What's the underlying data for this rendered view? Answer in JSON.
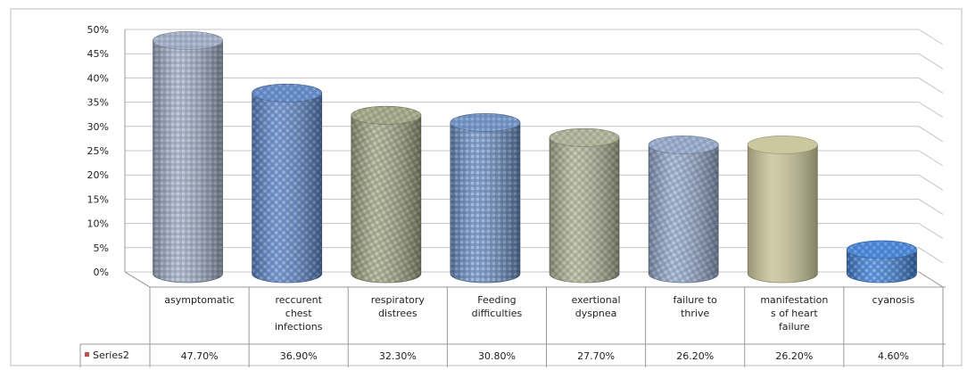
{
  "chart_data": {
    "type": "bar",
    "categories": [
      "asymptomatic",
      "reccurent chest infections",
      "respiratory distrees",
      "Feeding difficulties",
      "exertional dyspnea",
      "failure to thrive",
      "manifestations of heart failure",
      "cyanosis"
    ],
    "category_lines": [
      [
        "asymptomatic"
      ],
      [
        "reccurent",
        "chest",
        "infections"
      ],
      [
        "respiratory",
        "distrees"
      ],
      [
        "Feeding",
        "difficulties"
      ],
      [
        "exertional",
        "dyspnea"
      ],
      [
        "failure to",
        "thrive"
      ],
      [
        "manifestation",
        "s of heart",
        "failure"
      ],
      [
        "cyanosis"
      ]
    ],
    "series": [
      {
        "name": "Series2",
        "values": [
          47.7,
          36.9,
          32.3,
          30.8,
          27.7,
          26.2,
          26.2,
          4.6
        ],
        "value_labels": [
          "47.70%",
          "36.90%",
          "32.30%",
          "30.80%",
          "27.70%",
          "26.20%",
          "26.20%",
          "4.60%"
        ]
      }
    ],
    "y_ticks": [
      "0%",
      "5%",
      "10%",
      "15%",
      "20%",
      "25%",
      "30%",
      "35%",
      "40%",
      "45%",
      "50%"
    ],
    "ylim": [
      0,
      50
    ],
    "grid": true,
    "style": "3d-cylinder",
    "legend_placement": "table-left",
    "colors": [
      "#9aa8c0",
      "#5b82c4",
      "#9aa080",
      "#6a8cc0",
      "#a8ac90",
      "#8ea2c4",
      "#c8c49a",
      "#3f7fd4"
    ]
  }
}
